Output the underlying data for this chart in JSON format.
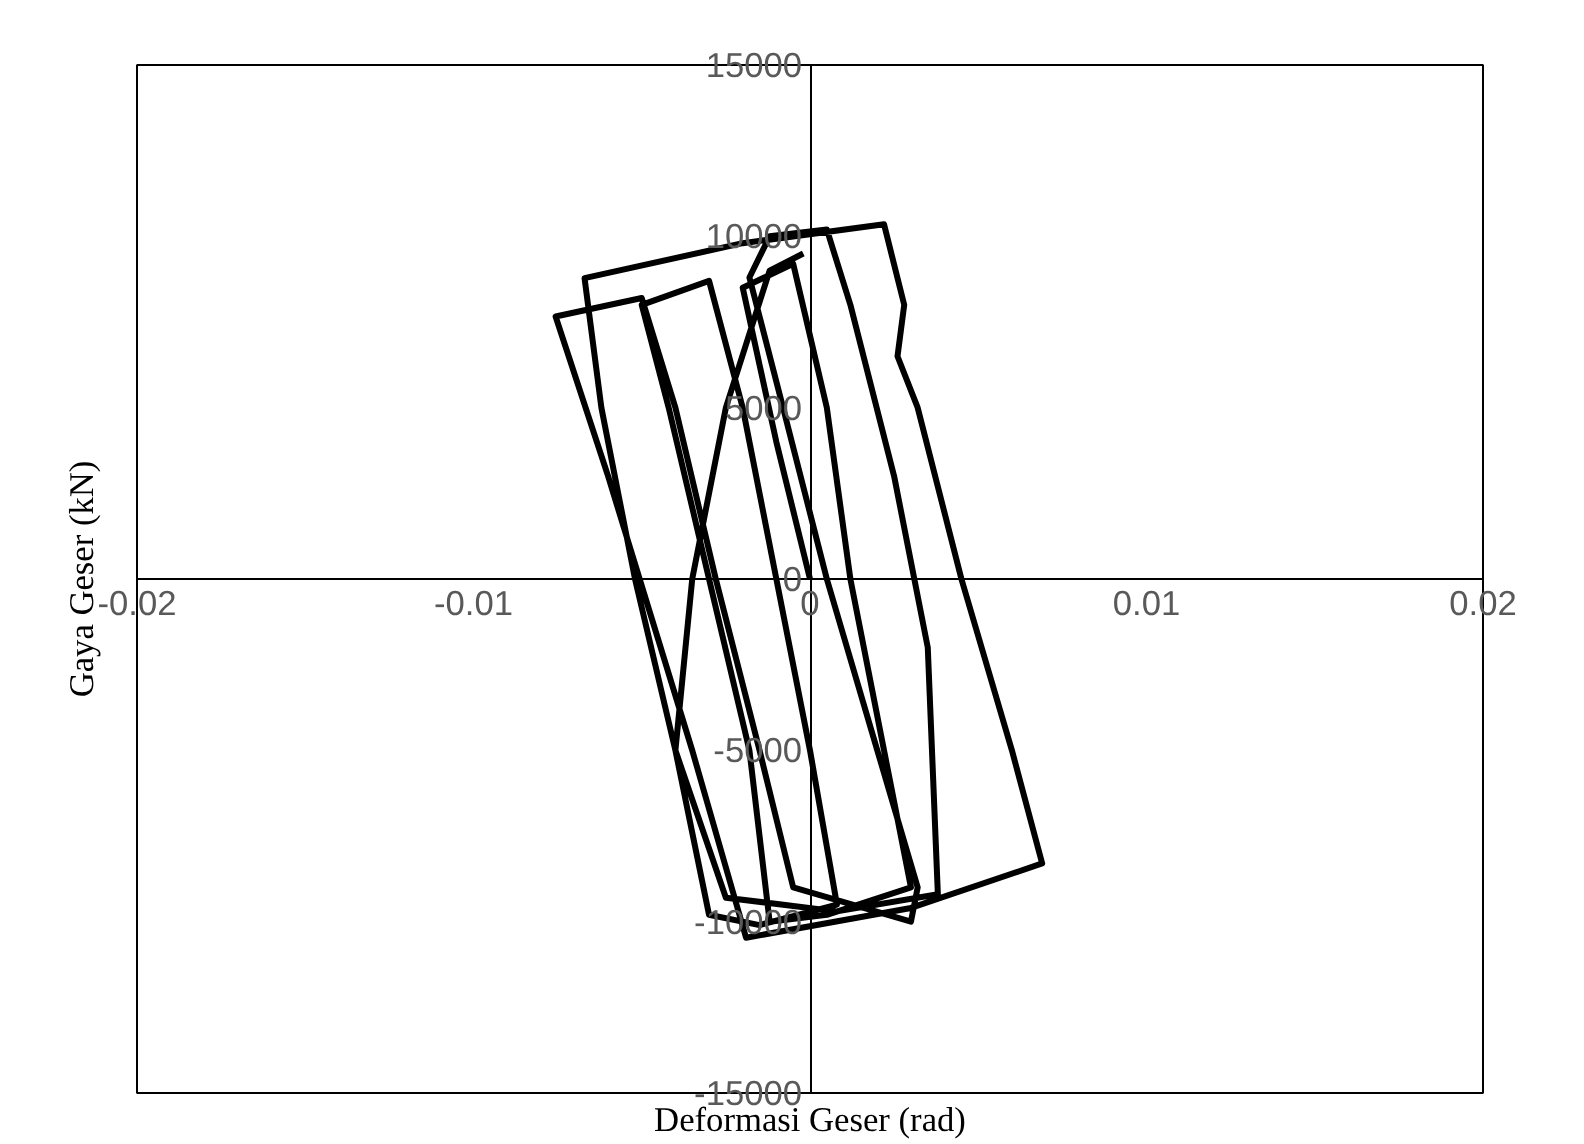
{
  "chart_data": {
    "type": "line",
    "xlabel": "Deformasi Geser (rad)",
    "ylabel": "Gaya Geser (kN)",
    "xlim": [
      -0.02,
      0.02
    ],
    "ylim": [
      -15000,
      15000
    ],
    "xticks": [
      -0.02,
      -0.01,
      0,
      0.01,
      0.02
    ],
    "yticks": [
      -15000,
      -10000,
      -5000,
      0,
      5000,
      10000,
      15000
    ],
    "grid": false,
    "line_style": "solid",
    "series": [
      {
        "color": "#000000",
        "x": [
          0,
          -0.001,
          -0.002,
          -0.0005,
          0.0005,
          0.0012,
          0.0022,
          0.003,
          0.0005,
          -0.0012,
          -0.0018,
          -0.003,
          -0.0042,
          -0.005,
          -0.003,
          -0.002,
          -0.001,
          0,
          0.0008,
          -0.0015,
          -0.003,
          -0.004,
          -0.0052,
          -0.0062,
          -0.0067,
          -0.002,
          0.0022,
          0.0028,
          0.0026,
          0.0032,
          0.0045,
          0.006,
          0.0069,
          0.003,
          -0.0019,
          -0.0035,
          -0.006,
          -0.00756,
          -0.005,
          -0.004,
          -0.0028,
          -0.0015,
          -0.0005,
          0.003,
          0.0032,
          0.002,
          0.0005,
          -0.0008,
          -0.0018,
          -0.0012,
          0.0005,
          0.0012,
          0.0025,
          0.0035,
          0.0038,
          0.0008,
          -0.0025,
          -0.004,
          -0.0035,
          -0.0025,
          -0.0012,
          -0.0002
        ],
        "values": [
          0,
          4000,
          8500,
          9200,
          5000,
          0,
          -5000,
          -9000,
          -9800,
          -10000,
          -5000,
          0,
          5000,
          8000,
          8700,
          5000,
          0,
          -5000,
          -9500,
          -10100,
          -9800,
          -5000,
          0,
          5000,
          8780,
          9800,
          10350,
          8000,
          6500,
          5000,
          0,
          -5000,
          -8300,
          -9600,
          -10470,
          -5000,
          3000,
          7660,
          8200,
          5000,
          0,
          -5000,
          -9000,
          -10000,
          -9000,
          -5000,
          0,
          5000,
          8800,
          10000,
          10200,
          8000,
          3000,
          -2000,
          -9200,
          -9700,
          -9300,
          -5000,
          0,
          5000,
          9000,
          9500
        ]
      }
    ]
  }
}
